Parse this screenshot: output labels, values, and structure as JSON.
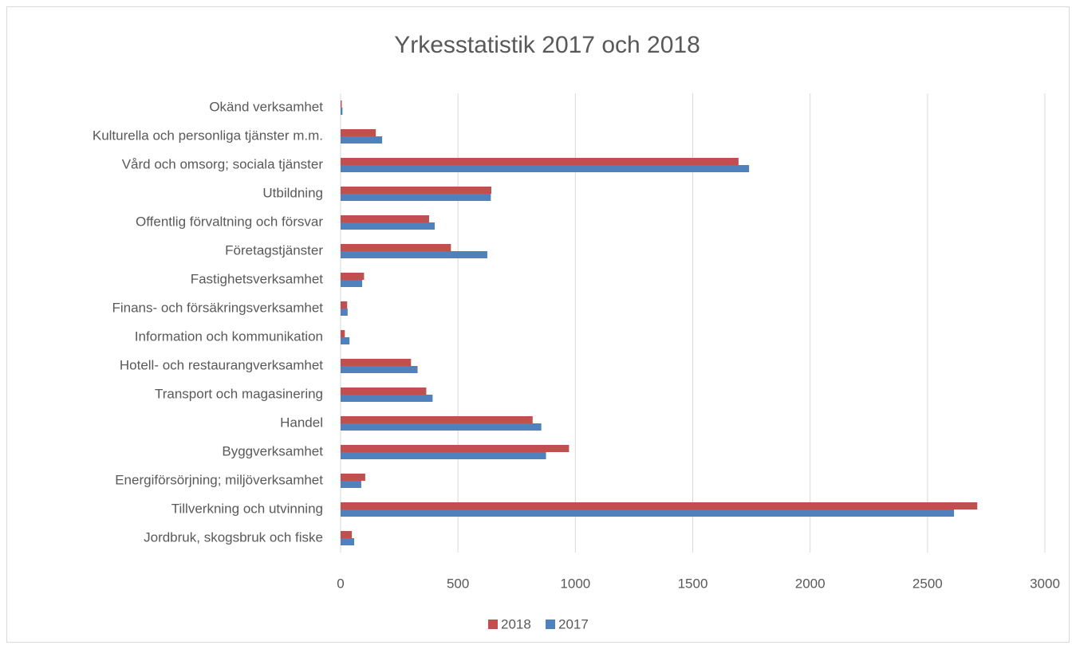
{
  "chart_data": {
    "type": "bar",
    "orientation": "horizontal",
    "title": "Yrkesstatistik 2017 och 2018",
    "categories": [
      "Okänd verksamhet",
      "Kulturella och personliga tjänster m.m.",
      "Vård och omsorg; sociala tjänster",
      "Utbildning",
      "Offentlig förvaltning och försvar",
      "Företagstjänster",
      "Fastighetsverksamhet",
      "Finans- och försäkringsverksamhet",
      "Information och kommunikation",
      "Hotell- och restaurangverksamhet",
      "Transport och magasinering",
      "Handel",
      "Byggverksamhet",
      "Energiförsörjning; miljöverksamhet",
      "Tillverkning och utvinning",
      "Jordbruk, skogsbruk och fiske"
    ],
    "series": [
      {
        "name": "2018",
        "color": "#c0504d",
        "values": [
          5,
          150,
          1695,
          642,
          377,
          470,
          100,
          28,
          18,
          300,
          365,
          818,
          973,
          105,
          2712,
          48
        ]
      },
      {
        "name": "2017",
        "color": "#4f81bd",
        "values": [
          8,
          177,
          1740,
          640,
          401,
          625,
          92,
          30,
          38,
          328,
          392,
          855,
          875,
          88,
          2613,
          58
        ]
      }
    ],
    "xlim": [
      0,
      3000
    ],
    "xticks": [
      0,
      500,
      1000,
      1500,
      2000,
      2500,
      3000
    ],
    "grid": true,
    "legend": "bottom"
  }
}
